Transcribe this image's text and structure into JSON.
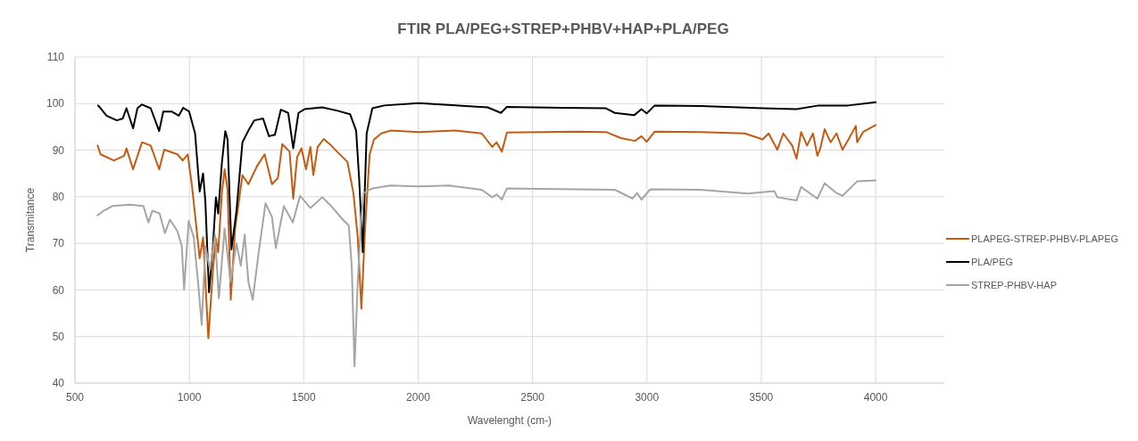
{
  "chart_data": {
    "type": "line",
    "title": "FTIR PLA/PEG+STREP+PHBV+HAP+PLA/PEG",
    "xlabel": "Wavelenght (cm-)",
    "ylabel": "Transmitance",
    "xlim": [
      500,
      4300
    ],
    "xticks": [
      500,
      1000,
      1500,
      2000,
      2500,
      3000,
      3500,
      4000
    ],
    "ylim": [
      40,
      110
    ],
    "yticks": [
      40,
      50,
      60,
      70,
      80,
      90,
      100,
      110
    ],
    "grid": true,
    "legend": "right",
    "marker": "none",
    "line_style": "solid",
    "series": [
      {
        "name": "PLAPEG-STREP-PHBV-PLAPEG",
        "color": "#c55a11",
        "x": [
          599,
          612,
          670,
          715,
          725,
          754,
          793,
          831,
          868,
          890,
          948,
          971,
          993,
          1012,
          1045,
          1060,
          1083,
          1103,
          1116,
          1126,
          1142,
          1154,
          1167,
          1181,
          1200,
          1232,
          1258,
          1296,
          1329,
          1361,
          1387,
          1406,
          1438,
          1454,
          1471,
          1490,
          1510,
          1529,
          1542,
          1561,
          1587,
          1620,
          1645,
          1691,
          1717,
          1736,
          1752,
          1768,
          1788,
          1807,
          1839,
          1878,
          2003,
          2162,
          2278,
          2324,
          2343,
          2366,
          2388,
          2692,
          2821,
          2886,
          2948,
          2976,
          2999,
          3034,
          3235,
          3428,
          3506,
          3532,
          3570,
          3596,
          3635,
          3654,
          3674,
          3700,
          3726,
          3745,
          3758,
          3777,
          3803,
          3829,
          3855,
          3881,
          3913,
          3919,
          3945,
          4000
        ],
        "values": [
          91,
          89.1,
          87.8,
          88.8,
          90.4,
          85.9,
          91.7,
          91,
          85.9,
          90.1,
          89.1,
          87.8,
          89.1,
          82.1,
          66.8,
          71.3,
          49.6,
          64.3,
          71,
          68.1,
          80.8,
          85.9,
          81.5,
          57.9,
          73.2,
          84.6,
          82.7,
          86.6,
          89.1,
          82.7,
          84,
          91.3,
          89.7,
          79.6,
          88.5,
          90.4,
          85.9,
          90.7,
          84.7,
          90.7,
          92.4,
          91,
          89.7,
          87.5,
          80.8,
          71.3,
          56,
          73.2,
          89.1,
          92.3,
          93.6,
          94.2,
          93.9,
          94.2,
          93.6,
          90.7,
          91.7,
          89.7,
          93.8,
          94,
          93.9,
          92.6,
          92,
          93,
          91.8,
          94,
          93.9,
          93.6,
          92.3,
          93.6,
          90.1,
          93.6,
          91,
          88.2,
          93.9,
          91,
          93.6,
          88.8,
          90.4,
          94.5,
          91.7,
          93.6,
          90.1,
          92.3,
          95.2,
          91.7,
          93.9,
          95.4
        ]
      },
      {
        "name": "PLA/PEG",
        "color": "#000000",
        "x": [
          601,
          612,
          638,
          683,
          709,
          725,
          754,
          773,
          793,
          831,
          868,
          886,
          922,
          954,
          973,
          999,
          1025,
          1045,
          1060,
          1070,
          1086,
          1103,
          1116,
          1126,
          1142,
          1157,
          1167,
          1184,
          1206,
          1232,
          1258,
          1284,
          1322,
          1348,
          1374,
          1400,
          1432,
          1454,
          1477,
          1503,
          1581,
          1645,
          1703,
          1729,
          1742,
          1758,
          1775,
          1800,
          1852,
          2003,
          2175,
          2304,
          2362,
          2388,
          2627,
          2821,
          2860,
          2944,
          2976,
          2999,
          3034,
          3235,
          3506,
          3654,
          3751,
          3880,
          4000
        ],
        "values": [
          99.6,
          99,
          97.4,
          96.4,
          96.8,
          99,
          94.7,
          99,
          99.8,
          99,
          94.1,
          98.3,
          98.3,
          97.4,
          99.1,
          98.3,
          93.6,
          81.1,
          85,
          78.9,
          59.5,
          69.4,
          79.9,
          76.4,
          87.2,
          94.1,
          92.3,
          68.7,
          77,
          91.7,
          94.2,
          96.4,
          96.8,
          93,
          93.3,
          98.7,
          98,
          90.4,
          98,
          98.8,
          99.2,
          98.5,
          97.7,
          94.2,
          84,
          68.1,
          93.6,
          99,
          99.6,
          100.1,
          99.6,
          99.2,
          98,
          99.3,
          99.1,
          99,
          98,
          97.5,
          98.8,
          97.9,
          99.6,
          99.5,
          99,
          98.8,
          99.6,
          99.6,
          100.3
        ]
      },
      {
        "name": "STREP-PHBV-HAP",
        "color": "#a5a5a5",
        "x": [
          599,
          625,
          663,
          741,
          799,
          821,
          838,
          870,
          893,
          915,
          948,
          967,
          977,
          997,
          1019,
          1038,
          1054,
          1070,
          1090,
          1112,
          1129,
          1154,
          1180,
          1206,
          1225,
          1242,
          1258,
          1277,
          1303,
          1333,
          1361,
          1378,
          1413,
          1452,
          1484,
          1529,
          1581,
          1620,
          1671,
          1697,
          1710,
          1722,
          1736,
          1750,
          1762,
          1800,
          1878,
          2003,
          2136,
          2278,
          2324,
          2343,
          2366,
          2388,
          2692,
          2860,
          2937,
          2957,
          2976,
          3015,
          3235,
          3441,
          3557,
          3570,
          3654,
          3674,
          3745,
          3777,
          3829,
          3855,
          3919,
          4000
        ],
        "values": [
          76,
          77,
          78,
          78.3,
          78,
          74.5,
          77,
          76.4,
          72.2,
          75.1,
          72.6,
          69.4,
          60.1,
          74.8,
          71.3,
          61.7,
          52.5,
          69.4,
          64.3,
          71.9,
          58.2,
          73.2,
          61.7,
          70,
          65.2,
          71.9,
          61.7,
          57.9,
          68.1,
          78.6,
          75.7,
          69,
          78,
          74.5,
          80.2,
          77.6,
          79.9,
          78,
          75.1,
          73.8,
          64.9,
          43.6,
          61.7,
          74.5,
          80.8,
          81.8,
          82.4,
          82.2,
          82.4,
          81.5,
          79.9,
          80.5,
          79.4,
          81.8,
          81.6,
          81.5,
          79.6,
          80.8,
          79.4,
          81.6,
          81.5,
          80.7,
          81.2,
          79.9,
          79.2,
          82.1,
          79.6,
          82.9,
          80.8,
          80.2,
          83.3,
          83.5
        ]
      }
    ]
  }
}
